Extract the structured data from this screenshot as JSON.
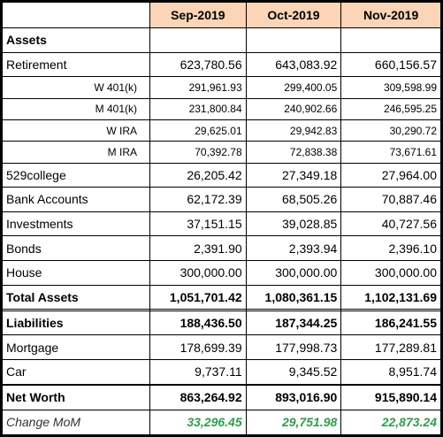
{
  "table": {
    "columns": [
      "Sep-2019",
      "Oct-2019",
      "Nov-2019"
    ],
    "rows": [
      {
        "label": "Assets"
      },
      {
        "label": "Retirement",
        "values": [
          "623,780.56",
          "643,083.92",
          "660,156.57"
        ]
      },
      {
        "label": "W 401(k)",
        "values": [
          "291,961.93",
          "299,400.05",
          "309,598.99"
        ]
      },
      {
        "label": "M 401(k)",
        "values": [
          "231,800.84",
          "240,902.66",
          "246,595.25"
        ]
      },
      {
        "label": "W IRA",
        "values": [
          "29,625.01",
          "29,942.83",
          "30,290.72"
        ]
      },
      {
        "label": "M IRA",
        "values": [
          "70,392.78",
          "72,838.38",
          "73,671.61"
        ]
      },
      {
        "label": "529college",
        "values": [
          "26,205.42",
          "27,349.18",
          "27,964.00"
        ]
      },
      {
        "label": "Bank Accounts",
        "values": [
          "62,172.39",
          "68,505.26",
          "70,887.46"
        ]
      },
      {
        "label": "Investments",
        "values": [
          "37,151.15",
          "39,028.85",
          "40,727.56"
        ]
      },
      {
        "label": "Bonds",
        "values": [
          "2,391.90",
          "2,393.94",
          "2,396.10"
        ]
      },
      {
        "label": "House",
        "values": [
          "300,000.00",
          "300,000.00",
          "300,000.00"
        ]
      },
      {
        "label": "Total Assets",
        "values": [
          "1,051,701.42",
          "1,080,361.15",
          "1,102,131.69"
        ]
      },
      {
        "label": "Liabilities",
        "values": [
          "188,436.50",
          "187,344.25",
          "186,241.55"
        ]
      },
      {
        "label": "Mortgage",
        "values": [
          "178,699.39",
          "177,998.73",
          "177,289.81"
        ]
      },
      {
        "label": "Car",
        "values": [
          "9,737.11",
          "9,345.52",
          "8,951.74"
        ]
      },
      {
        "label": "Net Worth",
        "values": [
          "863,264.92",
          "893,016.90",
          "915,890.14"
        ]
      },
      {
        "label": "Change MoM",
        "values": [
          "33,296.45",
          "29,751.98",
          "22,873.24"
        ]
      }
    ]
  }
}
